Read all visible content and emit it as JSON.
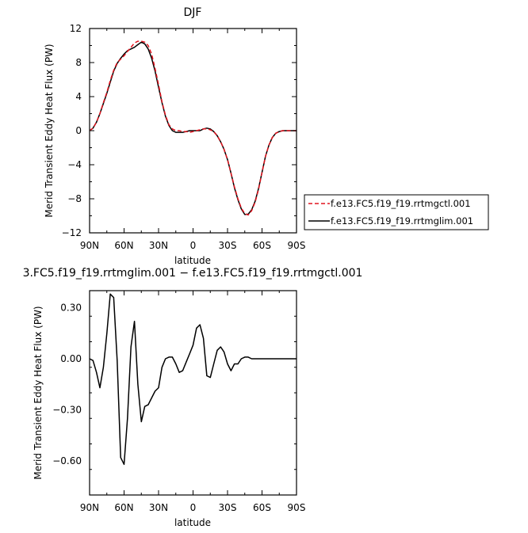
{
  "chart_data": [
    {
      "type": "line",
      "title": "DJF",
      "xlabel": "latitude",
      "ylabel": "Merid Transient Eddy Heat Flux (PW)",
      "xlim": [
        90,
        -90
      ],
      "ylim": [
        -12,
        12
      ],
      "x_ticks": [
        90,
        60,
        30,
        0,
        -30,
        -60,
        -90
      ],
      "x_tick_labels": [
        "90N",
        "60N",
        "30N",
        "0",
        "30S",
        "60S",
        "90S"
      ],
      "y_ticks": [
        12,
        8,
        4,
        0,
        -4,
        -8,
        -12
      ],
      "y_tick_labels": [
        "12",
        "8",
        "4",
        "0",
        "−4",
        "−8",
        "−12"
      ],
      "legend_position": "right",
      "series": [
        {
          "name": "f.e13.FC5.f19_f19.rrtmgctl.001",
          "color": "#e0141e",
          "dash": "dashed",
          "x": [
            90,
            87,
            84,
            81,
            78,
            75,
            72,
            69,
            66,
            63,
            60,
            57,
            54,
            51,
            48,
            45,
            42,
            39,
            36,
            33,
            30,
            27,
            24,
            21,
            18,
            15,
            12,
            9,
            6,
            3,
            0,
            -3,
            -6,
            -9,
            -12,
            -15,
            -18,
            -21,
            -24,
            -27,
            -30,
            -33,
            -36,
            -39,
            -42,
            -45,
            -48,
            -51,
            -54,
            -57,
            -60,
            -63,
            -66,
            -69,
            -72,
            -75,
            -78,
            -81,
            -84,
            -87,
            -90
          ],
          "y": [
            0,
            0.3,
            1.0,
            2.0,
            3.3,
            4.5,
            5.9,
            7.1,
            8.0,
            8.4,
            8.8,
            9.3,
            9.8,
            10.3,
            10.5,
            10.5,
            10.4,
            10.0,
            9.0,
            7.3,
            5.4,
            3.4,
            1.8,
            0.7,
            0.2,
            0.0,
            0.0,
            -0.1,
            -0.1,
            -0.2,
            -0.1,
            0.0,
            0.1,
            0.2,
            0.2,
            0.1,
            -0.1,
            -0.6,
            -1.3,
            -2.2,
            -3.4,
            -5.0,
            -6.6,
            -8.0,
            -9.1,
            -9.75,
            -9.9,
            -9.4,
            -8.4,
            -6.9,
            -4.9,
            -3.0,
            -1.7,
            -0.8,
            -0.3,
            -0.1,
            0,
            0,
            0,
            0,
            0
          ]
        },
        {
          "name": "f.e13.FC5.f19_f19.rrtmglim.001",
          "color": "#000000",
          "dash": "solid",
          "x": [
            90,
            87,
            84,
            81,
            78,
            75,
            72,
            69,
            66,
            63,
            60,
            57,
            54,
            51,
            48,
            45,
            42,
            39,
            36,
            33,
            30,
            27,
            24,
            21,
            18,
            15,
            12,
            9,
            6,
            3,
            0,
            -3,
            -6,
            -9,
            -12,
            -15,
            -18,
            -21,
            -24,
            -27,
            -30,
            -33,
            -36,
            -39,
            -42,
            -45,
            -48,
            -51,
            -54,
            -57,
            -60,
            -63,
            -66,
            -69,
            -72,
            -75,
            -78,
            -81,
            -84,
            -87,
            -90
          ],
          "y": [
            0,
            0.3,
            1.0,
            2.0,
            3.2,
            4.4,
            5.7,
            7.0,
            7.9,
            8.5,
            9.0,
            9.4,
            9.6,
            9.8,
            10.1,
            10.4,
            10.2,
            9.6,
            8.5,
            7.0,
            5.1,
            3.3,
            1.7,
            0.6,
            0.0,
            -0.2,
            -0.2,
            -0.2,
            -0.1,
            0.0,
            0.0,
            0.0,
            0.0,
            0.2,
            0.3,
            0.2,
            -0.1,
            -0.6,
            -1.3,
            -2.2,
            -3.4,
            -5.0,
            -6.7,
            -8.1,
            -9.2,
            -9.85,
            -9.8,
            -9.3,
            -8.3,
            -6.8,
            -4.9,
            -3.0,
            -1.7,
            -0.8,
            -0.3,
            -0.1,
            0,
            0,
            0,
            0,
            0
          ]
        }
      ]
    },
    {
      "type": "line",
      "title": "3.FC5.f19_f19.rrtmglim.001 − f.e13.FC5.f19_f19.rrtmgctl.001",
      "xlabel": "latitude",
      "ylabel": "Merid Transient Eddy Heat Flux (PW)",
      "xlim": [
        90,
        -90
      ],
      "ylim": [
        -0.8,
        0.4
      ],
      "x_ticks": [
        90,
        60,
        30,
        0,
        -30,
        -60,
        -90
      ],
      "x_tick_labels": [
        "90N",
        "60N",
        "30N",
        "0",
        "30S",
        "60S",
        "90S"
      ],
      "y_ticks": [
        0.3,
        0.0,
        -0.3,
        -0.6
      ],
      "y_tick_labels": [
        "0.30",
        "0.00",
        "−0.30",
        "−0.60"
      ],
      "series": [
        {
          "color": "#000000",
          "dash": "solid",
          "x": [
            90,
            87,
            84,
            81,
            78,
            75,
            72,
            69,
            66,
            63,
            60,
            57,
            54,
            51,
            48,
            45,
            42,
            39,
            36,
            33,
            30,
            27,
            24,
            21,
            18,
            15,
            12,
            9,
            6,
            3,
            0,
            -3,
            -6,
            -9,
            -12,
            -15,
            -18,
            -21,
            -24,
            -27,
            -30,
            -33,
            -36,
            -39,
            -42,
            -45,
            -48,
            -51,
            -54,
            -57,
            -60,
            -63,
            -66,
            -69,
            -72,
            -75,
            -78,
            -81,
            -84,
            -87,
            -90
          ],
          "y": [
            0.0,
            -0.01,
            -0.08,
            -0.17,
            -0.05,
            0.15,
            0.38,
            0.36,
            -0.01,
            -0.58,
            -0.62,
            -0.35,
            0.07,
            0.22,
            -0.15,
            -0.37,
            -0.28,
            -0.27,
            -0.23,
            -0.19,
            -0.17,
            -0.05,
            0.0,
            0.01,
            0.01,
            -0.03,
            -0.08,
            -0.07,
            -0.02,
            0.03,
            0.08,
            0.18,
            0.2,
            0.12,
            -0.1,
            -0.11,
            -0.03,
            0.05,
            0.07,
            0.04,
            -0.03,
            -0.07,
            -0.03,
            -0.03,
            0.0,
            0.01,
            0.01,
            0.0,
            0.0,
            0.0,
            0.0,
            0.0,
            0.0,
            0.0,
            0.0,
            0.0,
            0.0,
            0.0,
            0.0,
            0.0,
            0.0
          ]
        }
      ]
    }
  ]
}
